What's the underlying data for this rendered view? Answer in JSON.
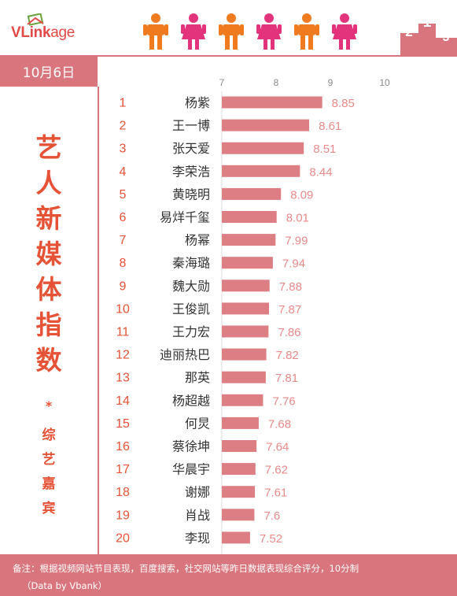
{
  "brand": {
    "logo_bold": "VLink",
    "logo_light": "age"
  },
  "date": "10月6日",
  "sidebar": {
    "title": [
      "艺",
      "人",
      "新",
      "媒",
      "体",
      "指",
      "数"
    ],
    "star": "*",
    "subtitle": [
      "综",
      "艺",
      "嘉",
      "宾"
    ]
  },
  "footer": {
    "note_line1": "备注：根据视频网站节目表现，百度搜索，社交网站等昨日数据表现综合评分，10分制",
    "note_line2": "（Data by Vbank）"
  },
  "colors": {
    "bar": "#dc7e84",
    "accent": "#d8757d",
    "title": "#e55236",
    "rank": "#e55236",
    "value": "#e88a8a",
    "person_orange": "#f07a1e",
    "person_pink": "#e3337c"
  },
  "icons": [
    "person-male-icon",
    "person-female-icon",
    "person-male-icon",
    "person-female-icon",
    "person-male-icon",
    "person-female-icon",
    "podium-icon"
  ],
  "chart_data": {
    "type": "bar",
    "orientation": "horizontal",
    "xlim": [
      7,
      10
    ],
    "xticks": [
      "7",
      "8",
      "9",
      "10"
    ],
    "ranks": [
      "1",
      "2",
      "3",
      "4",
      "5",
      "6",
      "7",
      "8",
      "9",
      "10",
      "11",
      "12",
      "13",
      "14",
      "15",
      "16",
      "17",
      "18",
      "19",
      "20"
    ],
    "categories": [
      "杨紫",
      "王一博",
      "张天爱",
      "李荣浩",
      "黄晓明",
      "易烊千玺",
      "杨幂",
      "秦海璐",
      "魏大勋",
      "王俊凯",
      "王力宏",
      "迪丽热巴",
      "那英",
      "杨超越",
      "何炅",
      "蔡徐坤",
      "华晨宇",
      "谢娜",
      "肖战",
      "李现"
    ],
    "values": [
      8.85,
      8.61,
      8.51,
      8.44,
      8.09,
      8.01,
      7.99,
      7.94,
      7.88,
      7.87,
      7.86,
      7.82,
      7.81,
      7.76,
      7.68,
      7.64,
      7.62,
      7.61,
      7.6,
      7.52
    ],
    "value_labels": [
      "8.85",
      "8.61",
      "8.51",
      "8.44",
      "8.09",
      "8.01",
      "7.99",
      "7.94",
      "7.88",
      "7.87",
      "7.86",
      "7.82",
      "7.81",
      "7.76",
      "7.68",
      "7.64",
      "7.62",
      "7.61",
      "7.6",
      "7.52"
    ],
    "grid": false,
    "legend": "none"
  }
}
